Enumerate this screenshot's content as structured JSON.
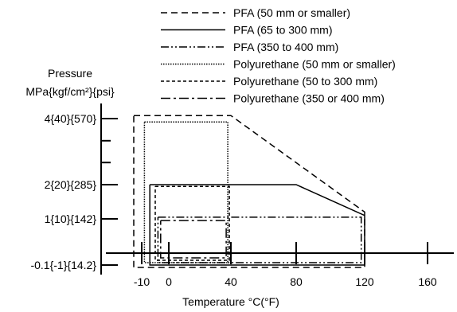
{
  "chart_data": {
    "type": "line",
    "xlabel": "Temperature °C(°F)",
    "ylabel_line1": "Pressure",
    "ylabel_line2": "MPa{kgf/cm²}{psi}",
    "x_ticks": [
      {
        "value": -10,
        "label": "-10"
      },
      {
        "value": 0,
        "label": "0"
      },
      {
        "value": 40,
        "label": "40"
      },
      {
        "value": 80,
        "label": "80"
      },
      {
        "value": 120,
        "label": "120"
      },
      {
        "value": 160,
        "label": "160"
      }
    ],
    "y_ticks": [
      {
        "value": -0.1,
        "label": "-0.1{-1}{14.2}"
      },
      {
        "value": 1,
        "label": "1{10}{142}"
      },
      {
        "value": 2,
        "label": "2{20}{285}"
      },
      {
        "value": 4,
        "label": "4{40}{570}"
      }
    ],
    "xlim": [
      -15,
      175
    ],
    "ylim": [
      -0.3,
      4.5
    ],
    "legend_position": "top-right",
    "series": [
      {
        "name": "PFA (50 mm or smaller)",
        "dash": "dashed",
        "points": [
          [
            -12,
            4.1
          ],
          [
            40,
            4.1
          ],
          [
            120,
            1.2
          ],
          [
            120,
            -0.15
          ],
          [
            -12,
            -0.15
          ],
          [
            -12,
            4.1
          ]
        ]
      },
      {
        "name": "PFA (65 to 300 mm)",
        "dash": "solid",
        "points": [
          [
            -7,
            2
          ],
          [
            80,
            2
          ],
          [
            120,
            1.1
          ],
          [
            120,
            -0.1
          ],
          [
            -7,
            -0.1
          ],
          [
            -7,
            2
          ]
        ]
      },
      {
        "name": "PFA (350 to 400 mm)",
        "dash": "dash-dot-dot",
        "points": [
          [
            -4,
            1.05
          ],
          [
            118,
            1.05
          ],
          [
            118,
            -0.08
          ],
          [
            -4,
            -0.08
          ],
          [
            -4,
            1.05
          ]
        ]
      },
      {
        "name": "Polyurethane (50 mm or smaller)",
        "dash": "dotted",
        "points": [
          [
            -9,
            3.9
          ],
          [
            38,
            3.9
          ],
          [
            38,
            -0.08
          ],
          [
            -9,
            -0.08
          ],
          [
            -9,
            3.9
          ]
        ]
      },
      {
        "name": "Polyurethane (50 to 300 mm)",
        "dash": "short-dashed",
        "points": [
          [
            -5,
            1.95
          ],
          [
            39,
            1.95
          ],
          [
            39,
            -0.06
          ],
          [
            -5,
            -0.06
          ],
          [
            -5,
            1.95
          ]
        ]
      },
      {
        "name": "Polyurethane (350 or 400 mm)",
        "dash": "dash-dot",
        "points": [
          [
            -3,
            0.95
          ],
          [
            37,
            0.95
          ],
          [
            37,
            -0.04
          ],
          [
            -3,
            -0.04
          ],
          [
            -3,
            0.95
          ]
        ]
      }
    ]
  }
}
